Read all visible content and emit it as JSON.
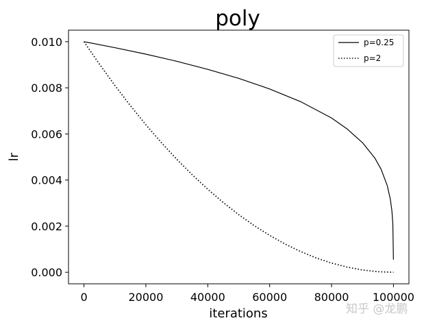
{
  "chart_data": {
    "type": "line",
    "title": "poly",
    "xlabel": "iterations",
    "ylabel": "lr",
    "xlim": [
      -5000,
      105000
    ],
    "ylim": [
      -0.0005,
      0.0105
    ],
    "xticks": [
      0,
      20000,
      40000,
      60000,
      80000,
      100000
    ],
    "xtick_labels": [
      "0",
      "20000",
      "40000",
      "60000",
      "80000",
      "100000"
    ],
    "yticks": [
      0.0,
      0.002,
      0.004,
      0.006,
      0.008,
      0.01
    ],
    "ytick_labels": [
      "0.000",
      "0.002",
      "0.004",
      "0.006",
      "0.008",
      "0.010"
    ],
    "grid": false,
    "legend_position": "top-right",
    "series": [
      {
        "name": "p=0.25",
        "style": "solid",
        "color": "#000000",
        "x": [
          0,
          10000,
          20000,
          30000,
          40000,
          50000,
          60000,
          70000,
          80000,
          85000,
          90000,
          94000,
          96000,
          98000,
          99000,
          99500,
          99800,
          99990
        ],
        "y": [
          0.01,
          0.00974,
          0.00946,
          0.00915,
          0.0088,
          0.00841,
          0.00795,
          0.0074,
          0.00669,
          0.00622,
          0.00562,
          0.00495,
          0.00447,
          0.00376,
          0.00316,
          0.00266,
          0.00211,
          0.00055
        ]
      },
      {
        "name": "p=2",
        "style": "dotted",
        "color": "#000000",
        "x": [
          0,
          5000,
          10000,
          15000,
          20000,
          25000,
          30000,
          35000,
          40000,
          45000,
          50000,
          55000,
          60000,
          65000,
          70000,
          75000,
          80000,
          85000,
          90000,
          95000,
          100000
        ],
        "y": [
          0.01,
          0.009025,
          0.0081,
          0.007225,
          0.0064,
          0.005625,
          0.0049,
          0.004225,
          0.0036,
          0.003025,
          0.0025,
          0.002025,
          0.0016,
          0.001225,
          0.0009,
          0.000625,
          0.0004,
          0.000225,
          0.0001,
          2.5e-05,
          0.0
        ]
      }
    ]
  },
  "watermark": "知乎 @龙鹏"
}
